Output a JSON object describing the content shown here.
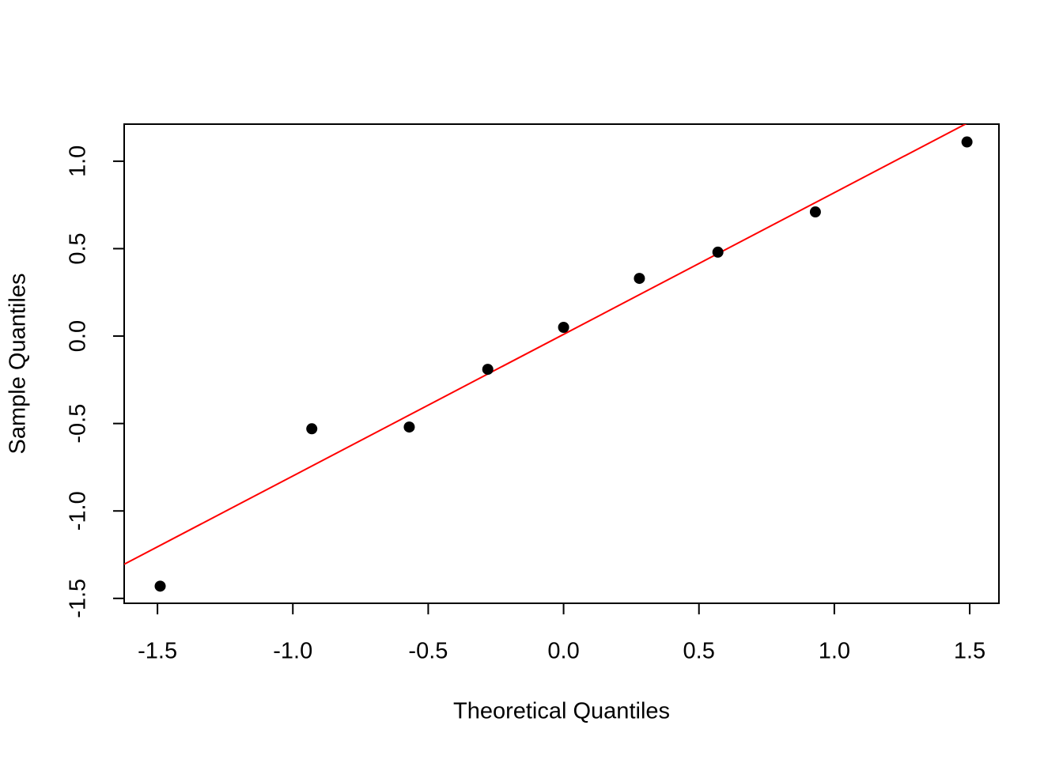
{
  "chart_data": {
    "type": "scatter",
    "x_label": "Theoretical Quantiles",
    "y_label": "Sample Quantiles",
    "x": [
      -1.49,
      -0.93,
      -0.57,
      -0.28,
      0,
      0.28,
      0.57,
      0.93,
      1.49
    ],
    "series": [
      {
        "name": "Sample",
        "color": "#000000",
        "values": [
          -1.43,
          -0.53,
          -0.52,
          -0.19,
          0.05,
          0.33,
          0.48,
          0.71,
          1.11
        ]
      }
    ],
    "reference_line": {
      "color": "#ff0000",
      "intercept": 0.01,
      "slope": 0.81
    },
    "xlim": [
      -1.623,
      1.608
    ],
    "ylim": [
      -1.528,
      1.212
    ],
    "xticks": [
      -1.5,
      {
        "value": -1.0,
        "label": "-1.0"
      },
      -0.5,
      {
        "value": 0,
        "label": "0.0"
      },
      0.5,
      {
        "value": 1.0,
        "label": "1.0"
      },
      1.5
    ],
    "yticks": [
      -1.5,
      {
        "value": -1.0,
        "label": "-1.0"
      },
      -0.5,
      {
        "value": 0,
        "label": "0.0"
      },
      0.5,
      {
        "value": 1.0,
        "label": "1.0"
      }
    ],
    "grid": false
  }
}
